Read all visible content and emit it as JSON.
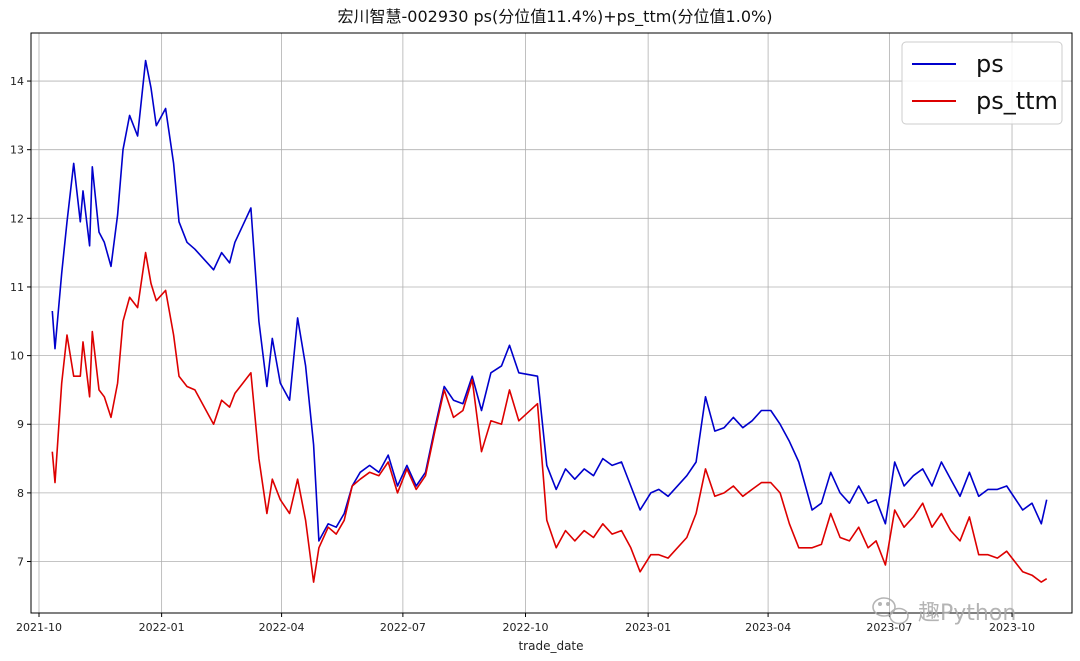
{
  "chart_data": {
    "type": "line",
    "title": "宏川智慧-002930 ps(分位值11.4%)+ps_ttm(分位值1.0%)",
    "xlabel": "trade_date",
    "ylabel": "",
    "xlim": [
      "2021-09-25",
      "2023-11-15"
    ],
    "ylim": [
      6.25,
      14.7
    ],
    "x_ticks": [
      "2021-10",
      "2022-01",
      "2022-04",
      "2022-07",
      "2022-10",
      "2023-01",
      "2023-04",
      "2023-07",
      "2023-10"
    ],
    "x_tick_dates": [
      "2021-10-01",
      "2022-01-01",
      "2022-04-01",
      "2022-07-01",
      "2022-10-01",
      "2023-01-01",
      "2023-04-01",
      "2023-07-01",
      "2023-10-01"
    ],
    "y_ticks": [
      7,
      8,
      9,
      10,
      11,
      12,
      13,
      14
    ],
    "grid": true,
    "legend_position": "top-right",
    "x": [
      "2021-10-11",
      "2021-10-13",
      "2021-10-18",
      "2021-10-22",
      "2021-10-27",
      "2021-11-01",
      "2021-11-03",
      "2021-11-08",
      "2021-11-10",
      "2021-11-15",
      "2021-11-19",
      "2021-11-24",
      "2021-11-29",
      "2021-12-03",
      "2021-12-08",
      "2021-12-14",
      "2021-12-20",
      "2021-12-24",
      "2021-12-28",
      "2022-01-04",
      "2022-01-10",
      "2022-01-14",
      "2022-01-20",
      "2022-01-26",
      "2022-02-09",
      "2022-02-15",
      "2022-02-21",
      "2022-02-25",
      "2022-03-03",
      "2022-03-09",
      "2022-03-15",
      "2022-03-21",
      "2022-03-25",
      "2022-03-31",
      "2022-04-07",
      "2022-04-13",
      "2022-04-19",
      "2022-04-25",
      "2022-04-29",
      "2022-05-06",
      "2022-05-12",
      "2022-05-18",
      "2022-05-24",
      "2022-05-30",
      "2022-06-06",
      "2022-06-13",
      "2022-06-20",
      "2022-06-27",
      "2022-07-04",
      "2022-07-11",
      "2022-07-18",
      "2022-07-25",
      "2022-08-01",
      "2022-08-08",
      "2022-08-15",
      "2022-08-22",
      "2022-08-29",
      "2022-09-05",
      "2022-09-13",
      "2022-09-19",
      "2022-09-26",
      "2022-10-10",
      "2022-10-17",
      "2022-10-24",
      "2022-10-31",
      "2022-11-07",
      "2022-11-14",
      "2022-11-21",
      "2022-11-28",
      "2022-12-05",
      "2022-12-12",
      "2022-12-19",
      "2022-12-26",
      "2023-01-03",
      "2023-01-09",
      "2023-01-16",
      "2023-01-30",
      "2023-02-06",
      "2023-02-13",
      "2023-02-20",
      "2023-02-27",
      "2023-03-06",
      "2023-03-13",
      "2023-03-20",
      "2023-03-27",
      "2023-04-03",
      "2023-04-10",
      "2023-04-17",
      "2023-04-24",
      "2023-05-04",
      "2023-05-11",
      "2023-05-18",
      "2023-05-25",
      "2023-06-01",
      "2023-06-08",
      "2023-06-15",
      "2023-06-21",
      "2023-06-28",
      "2023-07-05",
      "2023-07-12",
      "2023-07-19",
      "2023-07-26",
      "2023-08-02",
      "2023-08-09",
      "2023-08-16",
      "2023-08-23",
      "2023-08-30",
      "2023-09-06",
      "2023-09-13",
      "2023-09-20",
      "2023-09-27",
      "2023-10-09",
      "2023-10-16",
      "2023-10-23",
      "2023-10-27"
    ],
    "series": [
      {
        "name": "ps",
        "color": "#0000cc",
        "values": [
          10.65,
          10.1,
          11.2,
          11.95,
          12.8,
          11.95,
          12.4,
          11.6,
          12.75,
          11.8,
          11.65,
          11.3,
          12.05,
          13.0,
          13.5,
          13.2,
          14.3,
          13.9,
          13.35,
          13.6,
          12.8,
          11.95,
          11.65,
          11.55,
          11.25,
          11.5,
          11.35,
          11.65,
          11.9,
          12.15,
          10.5,
          9.55,
          10.25,
          9.6,
          9.35,
          10.55,
          9.85,
          8.7,
          7.3,
          7.55,
          7.5,
          7.7,
          8.1,
          8.3,
          8.4,
          8.3,
          8.55,
          8.1,
          8.4,
          8.1,
          8.3,
          8.95,
          9.55,
          9.35,
          9.3,
          9.7,
          9.2,
          9.75,
          9.85,
          10.15,
          9.75,
          9.7,
          8.4,
          8.05,
          8.35,
          8.2,
          8.35,
          8.25,
          8.5,
          8.4,
          8.45,
          8.1,
          7.75,
          8.0,
          8.05,
          7.95,
          8.25,
          8.45,
          9.4,
          8.9,
          8.95,
          9.1,
          8.95,
          9.05,
          9.2,
          9.2,
          9.0,
          8.75,
          8.45,
          7.75,
          7.85,
          8.3,
          8.0,
          7.85,
          8.1,
          7.85,
          7.9,
          7.55,
          8.45,
          8.1,
          8.25,
          8.35,
          8.1,
          8.45,
          8.2,
          7.95,
          8.3,
          7.95,
          8.05,
          8.05,
          8.1,
          7.75,
          7.85,
          7.55,
          7.9
        ]
      },
      {
        "name": "ps_ttm",
        "color": "#dd0000",
        "values": [
          8.6,
          8.15,
          9.6,
          10.3,
          9.7,
          9.7,
          10.2,
          9.4,
          10.35,
          9.5,
          9.4,
          9.1,
          9.6,
          10.5,
          10.85,
          10.7,
          11.5,
          11.05,
          10.8,
          10.95,
          10.3,
          9.7,
          9.55,
          9.5,
          9.0,
          9.35,
          9.25,
          9.45,
          9.6,
          9.75,
          8.5,
          7.7,
          8.2,
          7.9,
          7.7,
          8.2,
          7.6,
          6.7,
          7.2,
          7.5,
          7.4,
          7.6,
          8.1,
          8.2,
          8.3,
          8.25,
          8.45,
          8.0,
          8.35,
          8.05,
          8.25,
          8.9,
          9.5,
          9.1,
          9.2,
          9.65,
          8.6,
          9.05,
          9.0,
          9.5,
          9.05,
          9.3,
          7.6,
          7.2,
          7.45,
          7.3,
          7.45,
          7.35,
          7.55,
          7.4,
          7.45,
          7.2,
          6.85,
          7.1,
          7.1,
          7.05,
          7.35,
          7.7,
          8.35,
          7.95,
          8.0,
          8.1,
          7.95,
          8.05,
          8.15,
          8.15,
          8.0,
          7.55,
          7.2,
          7.2,
          7.25,
          7.7,
          7.35,
          7.3,
          7.5,
          7.2,
          7.3,
          6.95,
          7.75,
          7.5,
          7.65,
          7.85,
          7.5,
          7.7,
          7.45,
          7.3,
          7.65,
          7.1,
          7.1,
          7.05,
          7.15,
          6.85,
          6.8,
          6.7,
          6.75
        ]
      }
    ]
  },
  "watermark": {
    "text": "趣Python",
    "icon": "wechat-icon"
  }
}
